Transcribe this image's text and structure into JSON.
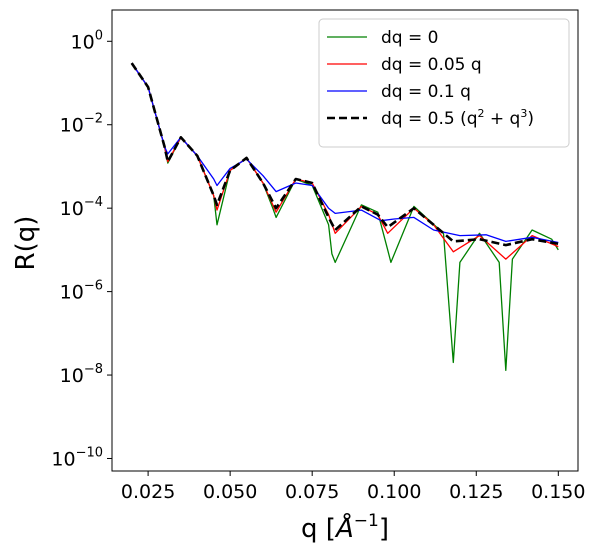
{
  "chart_data": {
    "type": "line",
    "title": "",
    "xlabel": "q [Å⁻¹]",
    "ylabel": "R(q)",
    "xlim": [
      0.014,
      0.156
    ],
    "ylim_log10": [
      -10.3,
      0.75
    ],
    "yscale": "log",
    "grid": false,
    "legend_position": "top-right",
    "x_ticks": [
      {
        "value": 0.025,
        "label": "0.025"
      },
      {
        "value": 0.05,
        "label": "0.050"
      },
      {
        "value": 0.075,
        "label": "0.075"
      },
      {
        "value": 0.1,
        "label": "0.100"
      },
      {
        "value": 0.125,
        "label": "0.125"
      },
      {
        "value": 0.15,
        "label": "0.150"
      }
    ],
    "y_ticks": [
      {
        "exp": 0,
        "label": "10^0"
      },
      {
        "exp": -2,
        "label": "10^-2"
      },
      {
        "exp": -4,
        "label": "10^-4"
      },
      {
        "exp": -6,
        "label": "10^-6"
      },
      {
        "exp": -8,
        "label": "10^-8"
      },
      {
        "exp": -10,
        "label": "10^-10"
      }
    ],
    "series": [
      {
        "name": "dq = 0",
        "color": "#008000",
        "style": "solid",
        "x": [
          0.02,
          0.025,
          0.03,
          0.031,
          0.035,
          0.04,
          0.045,
          0.046,
          0.05,
          0.055,
          0.06,
          0.063,
          0.064,
          0.07,
          0.075,
          0.08,
          0.081,
          0.082,
          0.09,
          0.095,
          0.098,
          0.099,
          0.106,
          0.115,
          0.118,
          0.12,
          0.126,
          0.132,
          0.134,
          0.136,
          0.142,
          0.148,
          0.15
        ],
        "y": [
          0.3,
          0.08,
          0.003,
          0.0012,
          0.005,
          0.0018,
          0.0002,
          4e-05,
          0.0008,
          0.0016,
          0.0004,
          0.0001,
          6e-05,
          0.0005,
          0.00035,
          4e-05,
          8e-06,
          5e-06,
          0.00012,
          8e-05,
          1e-05,
          5e-06,
          0.00011,
          2.5e-05,
          2e-08,
          5e-06,
          2.5e-05,
          5e-06,
          1.3e-08,
          6e-06,
          3e-05,
          1.8e-05,
          1e-05
        ]
      },
      {
        "name": "dq = 0.05 q",
        "color": "#ff0000",
        "style": "solid",
        "x": [
          0.02,
          0.025,
          0.03,
          0.031,
          0.035,
          0.04,
          0.045,
          0.046,
          0.05,
          0.055,
          0.06,
          0.064,
          0.07,
          0.075,
          0.08,
          0.082,
          0.09,
          0.095,
          0.098,
          0.106,
          0.112,
          0.118,
          0.126,
          0.134,
          0.142,
          0.15
        ],
        "y": [
          0.3,
          0.08,
          0.003,
          0.0013,
          0.005,
          0.0018,
          0.0002,
          9e-05,
          0.0008,
          0.0016,
          0.0004,
          8e-05,
          0.0005,
          0.0004,
          7e-05,
          2.5e-05,
          0.00011,
          7e-05,
          2.5e-05,
          0.0001,
          4e-05,
          9e-06,
          2.2e-05,
          6e-06,
          2.2e-05,
          1.2e-05
        ]
      },
      {
        "name": "dq = 0.1 q",
        "color": "#0000ff",
        "style": "solid",
        "x": [
          0.02,
          0.025,
          0.03,
          0.031,
          0.035,
          0.04,
          0.045,
          0.046,
          0.05,
          0.055,
          0.06,
          0.064,
          0.07,
          0.075,
          0.08,
          0.082,
          0.09,
          0.096,
          0.1,
          0.106,
          0.112,
          0.12,
          0.128,
          0.134,
          0.142,
          0.15
        ],
        "y": [
          0.3,
          0.08,
          0.003,
          0.002,
          0.005,
          0.0018,
          0.0005,
          0.00035,
          0.0009,
          0.0015,
          0.0006,
          0.00025,
          0.0004,
          0.00035,
          0.0001,
          7.5e-05,
          9e-05,
          5e-05,
          5.5e-05,
          6e-05,
          3e-05,
          2.2e-05,
          2.3e-05,
          1.6e-05,
          2e-05,
          1.5e-05
        ]
      },
      {
        "name": "dq = 0.5 (q² + q³)",
        "color": "#000000",
        "style": "dashed",
        "x": [
          0.02,
          0.025,
          0.03,
          0.031,
          0.035,
          0.04,
          0.045,
          0.046,
          0.05,
          0.055,
          0.06,
          0.064,
          0.07,
          0.075,
          0.08,
          0.082,
          0.09,
          0.095,
          0.098,
          0.106,
          0.112,
          0.118,
          0.126,
          0.134,
          0.142,
          0.15
        ],
        "y": [
          0.3,
          0.08,
          0.003,
          0.0013,
          0.005,
          0.0018,
          0.0002,
          0.00012,
          0.0008,
          0.0016,
          0.0004,
          0.0001,
          0.0005,
          0.0004,
          6e-05,
          3e-05,
          0.00011,
          7e-05,
          3.5e-05,
          0.0001,
          4e-05,
          1.6e-05,
          1.8e-05,
          1.3e-05,
          1.8e-05,
          1.4e-05
        ]
      }
    ]
  }
}
